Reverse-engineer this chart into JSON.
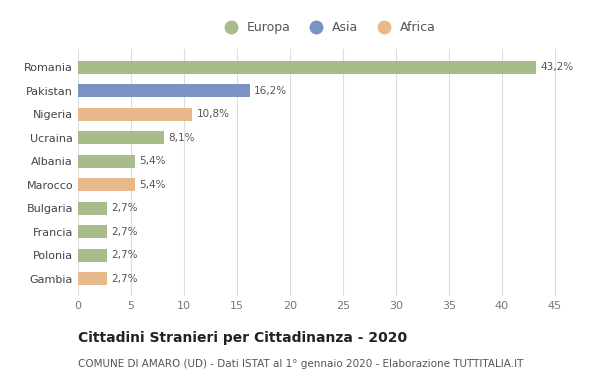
{
  "categories": [
    "Romania",
    "Pakistan",
    "Nigeria",
    "Ucraina",
    "Albania",
    "Marocco",
    "Bulgaria",
    "Francia",
    "Polonia",
    "Gambia"
  ],
  "values": [
    43.2,
    16.2,
    10.8,
    8.1,
    5.4,
    5.4,
    2.7,
    2.7,
    2.7,
    2.7
  ],
  "labels": [
    "43,2%",
    "16,2%",
    "10,8%",
    "8,1%",
    "5,4%",
    "5,4%",
    "2,7%",
    "2,7%",
    "2,7%",
    "2,7%"
  ],
  "colors": [
    "#a8bb8a",
    "#7b93c2",
    "#e8b98a",
    "#a8bb8a",
    "#a8bb8a",
    "#e8b98a",
    "#a8bb8a",
    "#a8bb8a",
    "#a8bb8a",
    "#e8b98a"
  ],
  "legend_labels": [
    "Europa",
    "Asia",
    "Africa"
  ],
  "legend_colors": [
    "#a8bb8a",
    "#7b93c2",
    "#e8b98a"
  ],
  "title": "Cittadini Stranieri per Cittadinanza - 2020",
  "subtitle": "COMUNE DI AMARO (UD) - Dati ISTAT al 1° gennaio 2020 - Elaborazione TUTTITALIA.IT",
  "xlim": [
    0,
    47
  ],
  "xticks": [
    0,
    5,
    10,
    15,
    20,
    25,
    30,
    35,
    40,
    45
  ],
  "background_color": "#ffffff",
  "grid_color": "#dddddd",
  "bar_height": 0.55,
  "title_fontsize": 10,
  "subtitle_fontsize": 7.5,
  "label_fontsize": 7.5,
  "ytick_fontsize": 8,
  "xtick_fontsize": 8,
  "legend_fontsize": 9
}
